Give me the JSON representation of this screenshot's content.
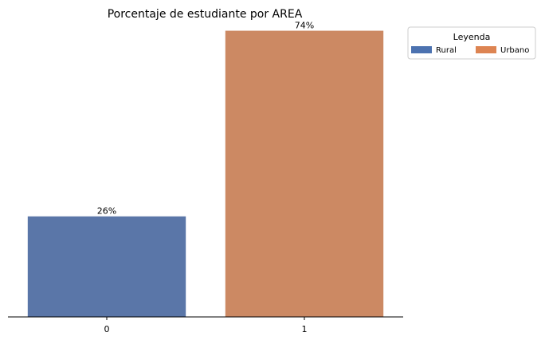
{
  "chart_data": {
    "type": "bar",
    "title": "Porcentaje de estudiante por AREA",
    "xlabel": "",
    "ylabel": "",
    "categories": [
      "0",
      "1"
    ],
    "values": [
      26,
      74
    ],
    "data_labels": [
      "26%",
      "74%"
    ],
    "bar_colors": [
      "#5a76a8",
      "#cc8963"
    ],
    "ylim": [
      0,
      77
    ],
    "grid": false,
    "legend": {
      "title": "Leyenda",
      "placement": "outside-top-right",
      "entries": [
        {
          "label": "Rural",
          "color": "#4c72b0"
        },
        {
          "label": "Urbano",
          "color": "#dd8452"
        }
      ]
    }
  }
}
